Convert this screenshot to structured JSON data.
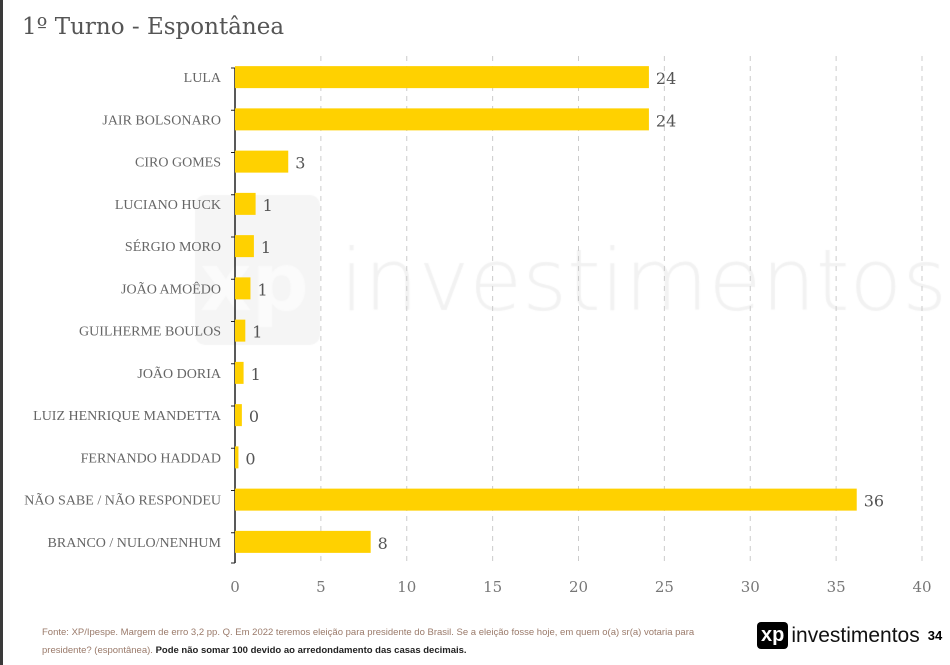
{
  "title": "1º Turno - Espontânea",
  "watermark": {
    "brand": "xp",
    "text": "investimentos"
  },
  "footer": {
    "source": "Fonte: XP/Ipespe. Margem de erro 3,2 pp. Q. Em 2022 teremos eleição para presidente do Brasil. Se a eleição fosse hoje, em quem o(a) sr(a) votaria para presidente? (espontânea). ",
    "note": "Pode não somar 100 devido ao arredondamento das casas decimais.",
    "logo_brand": "xp",
    "logo_text": "investimentos",
    "page": "34"
  },
  "chart_data": {
    "type": "bar",
    "orientation": "horizontal",
    "categories": [
      "LULA",
      "JAIR BOLSONARO",
      "CIRO GOMES",
      "LUCIANO HUCK",
      "SÉRGIO MORO",
      "JOÃO AMOÊDO",
      "GUILHERME BOULOS",
      "JOÃO DORIA",
      "LUIZ HENRIQUE MANDETTA",
      "FERNANDO HADDAD",
      "NÃO SABE / NÃO RESPONDEU",
      "BRANCO / NULO/NENHUM"
    ],
    "values": [
      24.1,
      24.1,
      3.1,
      1.2,
      1.1,
      0.9,
      0.6,
      0.5,
      0.4,
      0.2,
      36.2,
      7.9
    ],
    "data_labels": [
      "24",
      "24",
      "3",
      "1",
      "1",
      "1",
      "1",
      "1",
      "0",
      "0",
      "36",
      "8"
    ],
    "xlim": [
      0,
      40
    ],
    "xticks": [
      0,
      5,
      10,
      15,
      20,
      25,
      30,
      35,
      40
    ],
    "grid": "vertical dashed",
    "bar_color": "#FFD100"
  }
}
